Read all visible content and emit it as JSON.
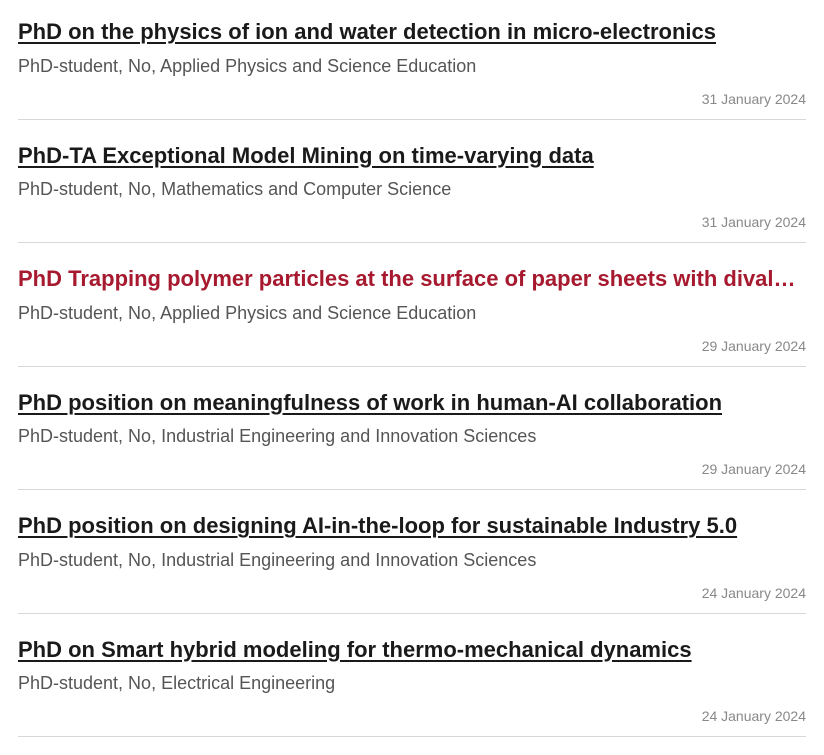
{
  "listings": [
    {
      "title": "PhD on the physics of ion and water detection in micro-electronics",
      "meta": "PhD-student, No, Applied Physics and Science Education",
      "date": "31 January 2024",
      "active": false
    },
    {
      "title": "PhD-TA Exceptional Model Mining on time-varying data",
      "meta": "PhD-student, No, Mathematics and Computer Science",
      "date": "31 January 2024",
      "active": false
    },
    {
      "title": "PhD Trapping polymer particles at the surface of paper sheets with dival…",
      "meta": "PhD-student, No, Applied Physics and Science Education",
      "date": "29 January 2024",
      "active": true
    },
    {
      "title": "PhD position on meaningfulness of work in human-AI collaboration",
      "meta": "PhD-student, No, Industrial Engineering and Innovation Sciences",
      "date": "29 January 2024",
      "active": false
    },
    {
      "title": "PhD position on designing AI-in-the-loop for sustainable Industry 5.0",
      "meta": "PhD-student, No, Industrial Engineering and Innovation Sciences",
      "date": "24 January 2024",
      "active": false
    },
    {
      "title": "PhD on Smart hybrid modeling for thermo-mechanical dynamics",
      "meta": "PhD-student, No, Electrical Engineering",
      "date": "24 January 2024",
      "active": false
    }
  ],
  "colors": {
    "text": "#1a1a1a",
    "meta": "#555555",
    "date": "#888888",
    "active": "#a6192e",
    "divider": "#d8d8d8",
    "background": "#ffffff"
  }
}
